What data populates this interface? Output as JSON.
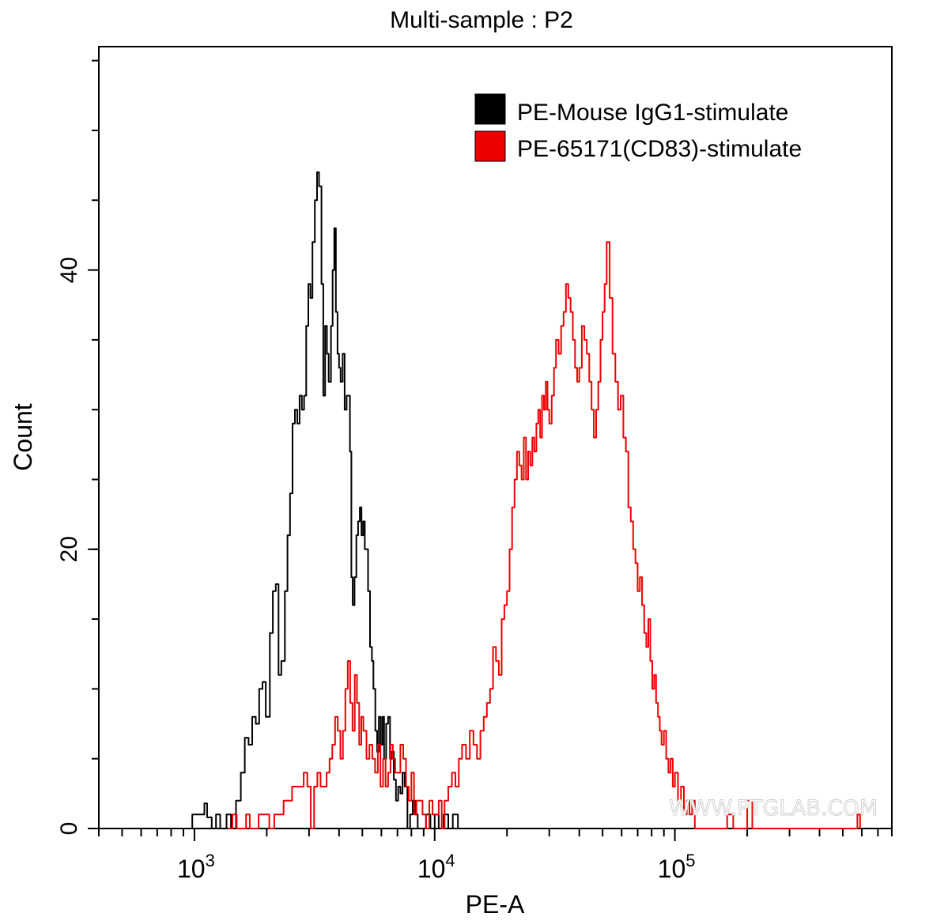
{
  "chart_data": {
    "type": "histogram",
    "title": "Multi-sample : P2",
    "xlabel": "PE-A",
    "ylabel": "Count",
    "xscale": "log",
    "xlim": [
      400,
      800000
    ],
    "ylim": [
      0,
      56
    ],
    "x_ticks": [
      {
        "value": 1000,
        "base": "10",
        "exp": "3"
      },
      {
        "value": 10000,
        "base": "10",
        "exp": "4"
      },
      {
        "value": 100000,
        "base": "10",
        "exp": "5"
      }
    ],
    "y_ticks": [
      {
        "value": 0,
        "label": "0"
      },
      {
        "value": 20,
        "label": "20"
      },
      {
        "value": 40,
        "label": "40"
      }
    ],
    "legend_position": "top-right",
    "series": [
      {
        "name": "PE-Mouse IgG1-stimulate",
        "color": "#000000",
        "points": [
          [
            960,
            0
          ],
          [
            980,
            1
          ],
          [
            1080,
            1
          ],
          [
            1100,
            1.8
          ],
          [
            1130,
            0.8
          ],
          [
            1180,
            0
          ],
          [
            1230,
            1
          ],
          [
            1280,
            0
          ],
          [
            1360,
            1
          ],
          [
            1420,
            0
          ],
          [
            1490,
            2
          ],
          [
            1560,
            4
          ],
          [
            1620,
            6.5
          ],
          [
            1680,
            6
          ],
          [
            1740,
            8
          ],
          [
            1800,
            7.5
          ],
          [
            1860,
            10
          ],
          [
            1920,
            10.5
          ],
          [
            1980,
            8
          ],
          [
            2060,
            14
          ],
          [
            2120,
            17
          ],
          [
            2180,
            17.5
          ],
          [
            2240,
            11
          ],
          [
            2300,
            12
          ],
          [
            2380,
            17
          ],
          [
            2440,
            21
          ],
          [
            2500,
            24
          ],
          [
            2560,
            29
          ],
          [
            2620,
            30
          ],
          [
            2680,
            29
          ],
          [
            2740,
            31
          ],
          [
            2800,
            30
          ],
          [
            2860,
            31
          ],
          [
            2920,
            36
          ],
          [
            2980,
            39
          ],
          [
            3040,
            38
          ],
          [
            3100,
            42
          ],
          [
            3170,
            45
          ],
          [
            3240,
            47
          ],
          [
            3300,
            46
          ],
          [
            3380,
            39
          ],
          [
            3440,
            31
          ],
          [
            3500,
            36
          ],
          [
            3560,
            34
          ],
          [
            3620,
            32
          ],
          [
            3700,
            36
          ],
          [
            3760,
            40
          ],
          [
            3820,
            43
          ],
          [
            3880,
            37
          ],
          [
            3940,
            34
          ],
          [
            4000,
            33
          ],
          [
            4060,
            32
          ],
          [
            4140,
            34
          ],
          [
            4220,
            30
          ],
          [
            4300,
            31
          ],
          [
            4380,
            31
          ],
          [
            4440,
            27
          ],
          [
            4500,
            18
          ],
          [
            4560,
            16
          ],
          [
            4640,
            18
          ],
          [
            4720,
            21
          ],
          [
            4800,
            22
          ],
          [
            4880,
            23
          ],
          [
            4960,
            21
          ],
          [
            5040,
            22
          ],
          [
            5120,
            20
          ],
          [
            5200,
            20
          ],
          [
            5280,
            17
          ],
          [
            5380,
            13
          ],
          [
            5480,
            12
          ],
          [
            5560,
            10
          ],
          [
            5660,
            7
          ],
          [
            5760,
            5.5
          ],
          [
            5860,
            8
          ],
          [
            5960,
            6
          ],
          [
            6060,
            8
          ],
          [
            6160,
            5
          ],
          [
            6280,
            7.5
          ],
          [
            6400,
            8
          ],
          [
            6520,
            5
          ],
          [
            6640,
            5.5
          ],
          [
            6760,
            3.5
          ],
          [
            6900,
            2
          ],
          [
            7050,
            3
          ],
          [
            7200,
            2.5
          ],
          [
            7350,
            4
          ],
          [
            7500,
            3
          ],
          [
            7700,
            0
          ],
          [
            7900,
            1
          ],
          [
            8100,
            2
          ],
          [
            8300,
            1
          ],
          [
            8500,
            0
          ],
          [
            8800,
            0
          ],
          [
            9200,
            1
          ],
          [
            9600,
            0
          ],
          [
            10000,
            1
          ],
          [
            10400,
            0
          ],
          [
            10900,
            1
          ],
          [
            11400,
            0
          ],
          [
            11900,
            1
          ],
          [
            12500,
            0
          ]
        ]
      },
      {
        "name": "PE-65171(CD83)-stimulate",
        "color": "#ee0000",
        "points": [
          [
            1380,
            0
          ],
          [
            1440,
            1
          ],
          [
            1500,
            0
          ],
          [
            1560,
            0
          ],
          [
            1640,
            1
          ],
          [
            1700,
            0
          ],
          [
            1780,
            0
          ],
          [
            1850,
            1
          ],
          [
            1950,
            1
          ],
          [
            2050,
            0
          ],
          [
            2150,
            1
          ],
          [
            2250,
            1
          ],
          [
            2350,
            2
          ],
          [
            2450,
            2
          ],
          [
            2550,
            3
          ],
          [
            2650,
            3
          ],
          [
            2750,
            3
          ],
          [
            2850,
            4
          ],
          [
            2950,
            3
          ],
          [
            3050,
            0
          ],
          [
            3150,
            3
          ],
          [
            3250,
            4
          ],
          [
            3350,
            3
          ],
          [
            3450,
            3
          ],
          [
            3550,
            4
          ],
          [
            3650,
            5
          ],
          [
            3750,
            6
          ],
          [
            3850,
            8
          ],
          [
            3950,
            7
          ],
          [
            4050,
            5
          ],
          [
            4150,
            7
          ],
          [
            4250,
            10
          ],
          [
            4350,
            12
          ],
          [
            4450,
            9
          ],
          [
            4550,
            7
          ],
          [
            4650,
            11
          ],
          [
            4750,
            9
          ],
          [
            4850,
            6
          ],
          [
            4950,
            8
          ],
          [
            5050,
            7
          ],
          [
            5200,
            5
          ],
          [
            5350,
            6
          ],
          [
            5500,
            5
          ],
          [
            5650,
            4
          ],
          [
            5800,
            6
          ],
          [
            5950,
            3
          ],
          [
            6100,
            5
          ],
          [
            6250,
            3
          ],
          [
            6400,
            4
          ],
          [
            6550,
            6
          ],
          [
            6700,
            5
          ],
          [
            6850,
            4
          ],
          [
            7000,
            4
          ],
          [
            7200,
            6
          ],
          [
            7400,
            5
          ],
          [
            7600,
            3
          ],
          [
            7800,
            2
          ],
          [
            8000,
            4
          ],
          [
            8200,
            1
          ],
          [
            8400,
            2
          ],
          [
            8600,
            2
          ],
          [
            8900,
            1
          ],
          [
            9200,
            0
          ],
          [
            9500,
            2
          ],
          [
            9800,
            1
          ],
          [
            10100,
            1
          ],
          [
            10400,
            2
          ],
          [
            10700,
            0
          ],
          [
            11000,
            2
          ],
          [
            11400,
            3
          ],
          [
            11800,
            4
          ],
          [
            12200,
            3
          ],
          [
            12600,
            5
          ],
          [
            13000,
            6
          ],
          [
            13500,
            5
          ],
          [
            14000,
            7
          ],
          [
            14500,
            6
          ],
          [
            15000,
            5
          ],
          [
            15500,
            7
          ],
          [
            16000,
            8
          ],
          [
            16500,
            9
          ],
          [
            17000,
            10
          ],
          [
            17500,
            13
          ],
          [
            18000,
            12
          ],
          [
            18500,
            11
          ],
          [
            19000,
            15
          ],
          [
            19500,
            16
          ],
          [
            20000,
            17
          ],
          [
            20500,
            20
          ],
          [
            21000,
            23
          ],
          [
            21500,
            25
          ],
          [
            22000,
            27
          ],
          [
            22500,
            26
          ],
          [
            23000,
            25
          ],
          [
            23500,
            28
          ],
          [
            24000,
            25
          ],
          [
            24500,
            27
          ],
          [
            25000,
            26
          ],
          [
            25500,
            28
          ],
          [
            26000,
            27
          ],
          [
            26500,
            29
          ],
          [
            27000,
            30
          ],
          [
            27500,
            28
          ],
          [
            28000,
            31
          ],
          [
            28500,
            30
          ],
          [
            29000,
            32
          ],
          [
            29500,
            30
          ],
          [
            30000,
            29
          ],
          [
            30700,
            31
          ],
          [
            31400,
            33
          ],
          [
            32000,
            35
          ],
          [
            32800,
            34
          ],
          [
            33600,
            36
          ],
          [
            34400,
            37
          ],
          [
            35200,
            39
          ],
          [
            36000,
            38
          ],
          [
            36800,
            37
          ],
          [
            37600,
            35
          ],
          [
            38400,
            33
          ],
          [
            39200,
            32
          ],
          [
            40000,
            33
          ],
          [
            41000,
            36
          ],
          [
            42000,
            35
          ],
          [
            43000,
            34
          ],
          [
            44000,
            32
          ],
          [
            45000,
            30
          ],
          [
            46000,
            28
          ],
          [
            47000,
            30
          ],
          [
            48000,
            32
          ],
          [
            49000,
            35
          ],
          [
            50000,
            37
          ],
          [
            51000,
            39
          ],
          [
            52000,
            42
          ],
          [
            53500,
            38
          ],
          [
            55000,
            34
          ],
          [
            56500,
            32
          ],
          [
            58000,
            30
          ],
          [
            59500,
            31
          ],
          [
            61000,
            28
          ],
          [
            62500,
            27
          ],
          [
            64000,
            23
          ],
          [
            65500,
            22
          ],
          [
            67000,
            20
          ],
          [
            68500,
            19
          ],
          [
            70000,
            17
          ],
          [
            71500,
            18
          ],
          [
            73000,
            16
          ],
          [
            74500,
            14
          ],
          [
            76000,
            13
          ],
          [
            77500,
            15
          ],
          [
            79000,
            12
          ],
          [
            80500,
            10
          ],
          [
            82000,
            11
          ],
          [
            83500,
            9
          ],
          [
            85000,
            8
          ],
          [
            86500,
            7
          ],
          [
            88000,
            6
          ],
          [
            90000,
            7
          ],
          [
            92000,
            5
          ],
          [
            94000,
            4
          ],
          [
            96000,
            5
          ],
          [
            98000,
            3
          ],
          [
            100000,
            4
          ],
          [
            103000,
            2
          ],
          [
            106000,
            3
          ],
          [
            109000,
            1
          ],
          [
            112000,
            2
          ],
          [
            115000,
            1
          ],
          [
            118000,
            2
          ],
          [
            121000,
            0
          ],
          [
            130000,
            0
          ],
          [
            150000,
            0
          ],
          [
            165000,
            1
          ],
          [
            175000,
            0
          ],
          [
            190000,
            0
          ],
          [
            200000,
            2
          ],
          [
            210000,
            0
          ],
          [
            560000,
            0
          ],
          [
            575000,
            1
          ],
          [
            590000,
            0
          ]
        ]
      }
    ]
  },
  "watermark": "WWW.PTGLAB.COM"
}
